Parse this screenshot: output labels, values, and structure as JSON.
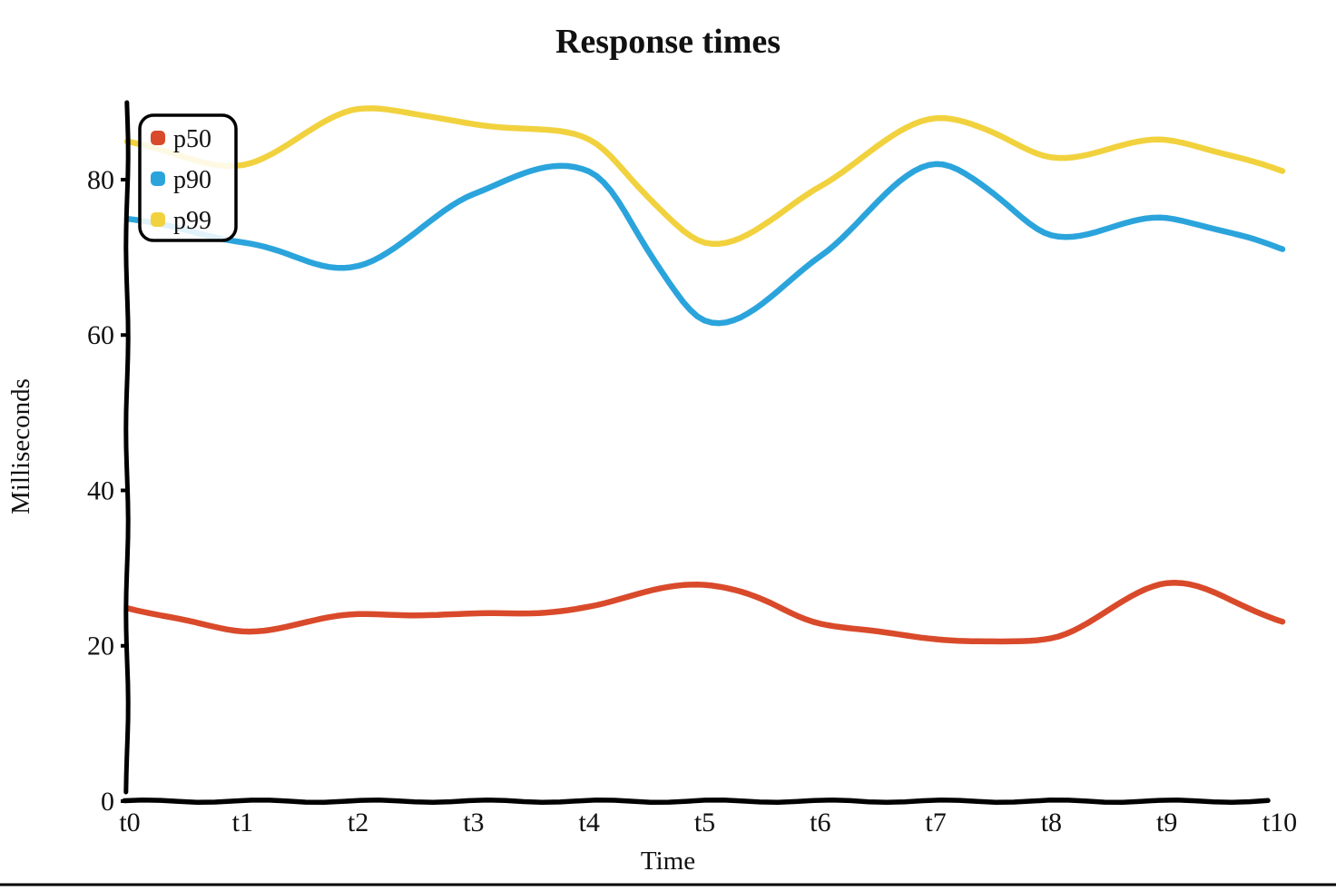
{
  "title": "Response times",
  "chart_data": {
    "type": "line",
    "title": "Response times",
    "xlabel": "Time",
    "ylabel": "Milliseconds",
    "x": [
      "t0",
      "t1",
      "t2",
      "t3",
      "t4",
      "t5",
      "t6",
      "t7",
      "t8",
      "t9",
      "t10"
    ],
    "y_ticks": [
      0,
      20,
      40,
      60,
      80
    ],
    "ylim": [
      0,
      90
    ],
    "grid": false,
    "legend_position": "upper-left",
    "style": "xkcd-hand-drawn",
    "axis_color": "#000000",
    "series": [
      {
        "name": "p50",
        "color": "#d94a2b",
        "values": [
          25,
          22,
          24,
          24,
          25,
          28,
          23,
          21,
          21,
          28,
          23
        ]
      },
      {
        "name": "p90",
        "color": "#2ba4dc",
        "values": [
          75,
          72,
          69,
          78,
          81,
          62,
          70,
          82,
          73,
          75,
          71
        ]
      },
      {
        "name": "p99",
        "color": "#f1d23e",
        "values": [
          85,
          82,
          89,
          87,
          85,
          72,
          79,
          88,
          83,
          85,
          81
        ]
      }
    ]
  }
}
